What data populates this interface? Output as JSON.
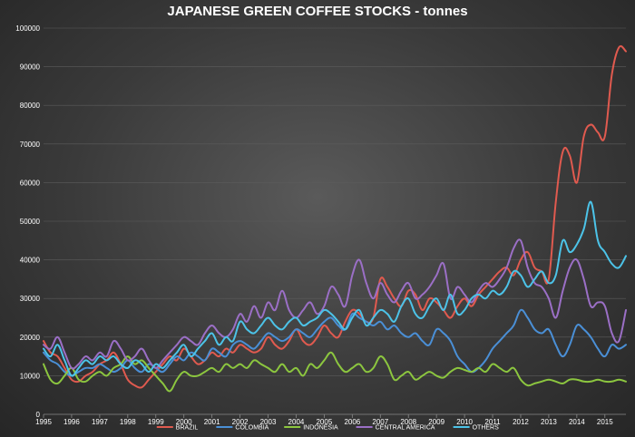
{
  "chart_data": {
    "type": "line",
    "title": "JAPANESE GREEN COFFEE STOCKS - tonnes",
    "xlabel": "",
    "ylabel": "",
    "xlim": [
      1995,
      2015.75
    ],
    "ylim": [
      0,
      100000
    ],
    "x_ticks": [
      "1995",
      "1996",
      "1997",
      "1998",
      "1999",
      "2000",
      "2001",
      "2002",
      "2003",
      "2004",
      "2005",
      "2006",
      "2007",
      "2008",
      "2009",
      "2010",
      "2011",
      "2012",
      "2013",
      "2014",
      "2015"
    ],
    "y_ticks": [
      "0",
      "10000",
      "20000",
      "30000",
      "40000",
      "50000",
      "60000",
      "70000",
      "80000",
      "90000",
      "100000"
    ],
    "grid": "horizontal",
    "legend_position": "bottom",
    "series": [
      {
        "name": "BRAZIL",
        "color": "#e05a4f",
        "x": [
          1995.0,
          1995.25,
          1995.5,
          1995.75,
          1996.0,
          1996.25,
          1996.5,
          1996.75,
          1997.0,
          1997.25,
          1997.5,
          1997.75,
          1998.0,
          1998.25,
          1998.5,
          1998.75,
          1999.0,
          1999.25,
          1999.5,
          1999.75,
          2000.0,
          2000.25,
          2000.5,
          2000.75,
          2001.0,
          2001.25,
          2001.5,
          2001.75,
          2002.0,
          2002.25,
          2002.5,
          2002.75,
          2003.0,
          2003.25,
          2003.5,
          2003.75,
          2004.0,
          2004.25,
          2004.5,
          2004.75,
          2005.0,
          2005.25,
          2005.5,
          2005.75,
          2006.0,
          2006.25,
          2006.5,
          2006.75,
          2007.0,
          2007.25,
          2007.5,
          2007.75,
          2008.0,
          2008.25,
          2008.5,
          2008.75,
          2009.0,
          2009.25,
          2009.5,
          2009.75,
          2010.0,
          2010.25,
          2010.5,
          2010.75,
          2011.0,
          2011.25,
          2011.5,
          2011.75,
          2012.0,
          2012.25,
          2012.5,
          2012.75,
          2013.0,
          2013.25,
          2013.5,
          2013.75,
          2014.0,
          2014.25,
          2014.5,
          2014.75,
          2015.0,
          2015.25,
          2015.5,
          2015.75
        ],
        "y": [
          19000,
          16000,
          15000,
          12000,
          9000,
          8500,
          10000,
          11000,
          13000,
          14000,
          16000,
          13000,
          9000,
          7500,
          7000,
          9000,
          11000,
          13000,
          15000,
          14000,
          17000,
          15000,
          13000,
          14000,
          16000,
          15000,
          17000,
          16000,
          18000,
          17000,
          16000,
          17000,
          20000,
          18000,
          17000,
          19000,
          22000,
          19000,
          18000,
          20000,
          23000,
          21000,
          20000,
          24000,
          27000,
          26000,
          24000,
          25000,
          35000,
          33000,
          30000,
          28000,
          32000,
          31000,
          27000,
          30000,
          29000,
          27000,
          25000,
          28000,
          30000,
          28000,
          31000,
          33000,
          35000,
          37000,
          38000,
          36000,
          40000,
          42000,
          38000,
          37000,
          35000,
          55000,
          68000,
          67000,
          60000,
          72000,
          75000,
          73000,
          72000,
          88000,
          95000,
          94000
        ]
      },
      {
        "name": "COLOMBIA",
        "color": "#4a8fd6",
        "x": [
          1995.0,
          1995.25,
          1995.5,
          1995.75,
          1996.0,
          1996.25,
          1996.5,
          1996.75,
          1997.0,
          1997.25,
          1997.5,
          1997.75,
          1998.0,
          1998.25,
          1998.5,
          1998.75,
          1999.0,
          1999.25,
          1999.5,
          1999.75,
          2000.0,
          2000.25,
          2000.5,
          2000.75,
          2001.0,
          2001.25,
          2001.5,
          2001.75,
          2002.0,
          2002.25,
          2002.5,
          2002.75,
          2003.0,
          2003.25,
          2003.5,
          2003.75,
          2004.0,
          2004.25,
          2004.5,
          2004.75,
          2005.0,
          2005.25,
          2005.5,
          2005.75,
          2006.0,
          2006.25,
          2006.5,
          2006.75,
          2007.0,
          2007.25,
          2007.5,
          2007.75,
          2008.0,
          2008.25,
          2008.5,
          2008.75,
          2009.0,
          2009.25,
          2009.5,
          2009.75,
          2010.0,
          2010.25,
          2010.5,
          2010.75,
          2011.0,
          2011.25,
          2011.5,
          2011.75,
          2012.0,
          2012.25,
          2012.5,
          2012.75,
          2013.0,
          2013.25,
          2013.5,
          2013.75,
          2014.0,
          2014.25,
          2014.5,
          2014.75,
          2015.0,
          2015.25,
          2015.5,
          2015.75
        ],
        "y": [
          16000,
          14000,
          13000,
          11000,
          10000,
          11000,
          12000,
          12000,
          13000,
          12000,
          11000,
          12000,
          14000,
          12000,
          11000,
          13000,
          12000,
          11000,
          13000,
          15000,
          14000,
          16000,
          15000,
          14000,
          17000,
          16000,
          15000,
          18000,
          19000,
          18000,
          17000,
          19000,
          21000,
          20000,
          19000,
          20000,
          22000,
          21000,
          20000,
          22000,
          24000,
          25000,
          23000,
          22000,
          26000,
          25000,
          24000,
          23000,
          24000,
          22000,
          23000,
          21000,
          20000,
          21000,
          19000,
          18000,
          22000,
          21000,
          19000,
          15000,
          13000,
          11000,
          12000,
          14000,
          17000,
          19000,
          21000,
          23000,
          27000,
          25000,
          22000,
          21000,
          22000,
          18000,
          15000,
          18000,
          23000,
          22000,
          20000,
          17000,
          15000,
          18000,
          17000,
          18000
        ]
      },
      {
        "name": "INDONESIA",
        "color": "#8cc63f",
        "x": [
          1995.0,
          1995.25,
          1995.5,
          1995.75,
          1996.0,
          1996.25,
          1996.5,
          1996.75,
          1997.0,
          1997.25,
          1997.5,
          1997.75,
          1998.0,
          1998.25,
          1998.5,
          1998.75,
          1999.0,
          1999.25,
          1999.5,
          1999.75,
          2000.0,
          2000.25,
          2000.5,
          2000.75,
          2001.0,
          2001.25,
          2001.5,
          2001.75,
          2002.0,
          2002.25,
          2002.5,
          2002.75,
          2003.0,
          2003.25,
          2003.5,
          2003.75,
          2004.0,
          2004.25,
          2004.5,
          2004.75,
          2005.0,
          2005.25,
          2005.5,
          2005.75,
          2006.0,
          2006.25,
          2006.5,
          2006.75,
          2007.0,
          2007.25,
          2007.5,
          2007.75,
          2008.0,
          2008.25,
          2008.5,
          2008.75,
          2009.0,
          2009.25,
          2009.5,
          2009.75,
          2010.0,
          2010.25,
          2010.5,
          2010.75,
          2011.0,
          2011.25,
          2011.5,
          2011.75,
          2012.0,
          2012.25,
          2012.5,
          2012.75,
          2013.0,
          2013.25,
          2013.5,
          2013.75,
          2014.0,
          2014.25,
          2014.5,
          2014.75,
          2015.0,
          2015.25,
          2015.5,
          2015.75
        ],
        "y": [
          13000,
          9000,
          8000,
          10000,
          12000,
          9000,
          8500,
          10000,
          11000,
          10000,
          12000,
          13000,
          15000,
          13000,
          14000,
          12000,
          10000,
          8000,
          6000,
          9000,
          11000,
          10000,
          10000,
          11000,
          12000,
          11000,
          13000,
          12000,
          13000,
          12000,
          14000,
          13000,
          12000,
          11000,
          13000,
          11000,
          12000,
          10000,
          13000,
          12000,
          14000,
          16000,
          13000,
          11000,
          12000,
          13000,
          11000,
          12000,
          15000,
          13000,
          9000,
          10000,
          11000,
          9000,
          10000,
          11000,
          10000,
          9500,
          11000,
          12000,
          11500,
          11000,
          12000,
          11000,
          13000,
          12000,
          11000,
          12000,
          9000,
          7500,
          8000,
          8500,
          9000,
          8500,
          8000,
          9000,
          9000,
          8500,
          8500,
          9000,
          8500,
          8500,
          9000,
          8500
        ]
      },
      {
        "name": "CENTRAL AMERICA",
        "color": "#9b6fc6",
        "x": [
          1995.0,
          1995.25,
          1995.5,
          1995.75,
          1996.0,
          1996.25,
          1996.5,
          1996.75,
          1997.0,
          1997.25,
          1997.5,
          1997.75,
          1998.0,
          1998.25,
          1998.5,
          1998.75,
          1999.0,
          1999.25,
          1999.5,
          1999.75,
          2000.0,
          2000.25,
          2000.5,
          2000.75,
          2001.0,
          2001.25,
          2001.5,
          2001.75,
          2002.0,
          2002.25,
          2002.5,
          2002.75,
          2003.0,
          2003.25,
          2003.5,
          2003.75,
          2004.0,
          2004.25,
          2004.5,
          2004.75,
          2005.0,
          2005.25,
          2005.5,
          2005.75,
          2006.0,
          2006.25,
          2006.5,
          2006.75,
          2007.0,
          2007.25,
          2007.5,
          2007.75,
          2008.0,
          2008.25,
          2008.5,
          2008.75,
          2009.0,
          2009.25,
          2009.5,
          2009.75,
          2010.0,
          2010.25,
          2010.5,
          2010.75,
          2011.0,
          2011.25,
          2011.5,
          2011.75,
          2012.0,
          2012.25,
          2012.5,
          2012.75,
          2013.0,
          2013.25,
          2013.5,
          2013.75,
          2014.0,
          2014.25,
          2014.5,
          2014.75,
          2015.0,
          2015.25,
          2015.5,
          2015.75
        ],
        "y": [
          18000,
          17000,
          20000,
          16000,
          12000,
          13000,
          15000,
          14000,
          16000,
          15000,
          19000,
          17000,
          14000,
          15000,
          17000,
          14000,
          12000,
          14000,
          16000,
          18000,
          20000,
          19000,
          18000,
          21000,
          23000,
          21000,
          20000,
          22000,
          26000,
          24000,
          28000,
          25000,
          29000,
          27000,
          32000,
          27000,
          25000,
          27000,
          29000,
          26000,
          28000,
          33000,
          31000,
          28000,
          36000,
          40000,
          34000,
          30000,
          34000,
          31000,
          29000,
          32000,
          34000,
          30000,
          31000,
          33000,
          36000,
          39000,
          30000,
          33000,
          31000,
          29000,
          32000,
          34000,
          33000,
          35000,
          38000,
          43000,
          45000,
          38000,
          34000,
          33000,
          30000,
          25000,
          32000,
          38000,
          40000,
          35000,
          28000,
          29000,
          28000,
          21000,
          19000,
          27000
        ]
      },
      {
        "name": "OTHERS",
        "color": "#4cc3e8",
        "x": [
          1995.0,
          1995.25,
          1995.5,
          1995.75,
          1996.0,
          1996.25,
          1996.5,
          1996.75,
          1997.0,
          1997.25,
          1997.5,
          1997.75,
          1998.0,
          1998.25,
          1998.5,
          1998.75,
          1999.0,
          1999.25,
          1999.5,
          1999.75,
          2000.0,
          2000.25,
          2000.5,
          2000.75,
          2001.0,
          2001.25,
          2001.5,
          2001.75,
          2002.0,
          2002.25,
          2002.5,
          2002.75,
          2003.0,
          2003.25,
          2003.5,
          2003.75,
          2004.0,
          2004.25,
          2004.5,
          2004.75,
          2005.0,
          2005.25,
          2005.5,
          2005.75,
          2006.0,
          2006.25,
          2006.5,
          2006.75,
          2007.0,
          2007.25,
          2007.5,
          2007.75,
          2008.0,
          2008.25,
          2008.5,
          2008.75,
          2009.0,
          2009.25,
          2009.5,
          2009.75,
          2010.0,
          2010.25,
          2010.5,
          2010.75,
          2011.0,
          2011.25,
          2011.5,
          2011.75,
          2012.0,
          2012.25,
          2012.5,
          2012.75,
          2013.0,
          2013.25,
          2013.5,
          2013.75,
          2014.0,
          2014.25,
          2014.5,
          2014.75,
          2015.0,
          2015.25,
          2015.5,
          2015.75
        ],
        "y": [
          17000,
          15000,
          18000,
          14000,
          10000,
          12000,
          14000,
          13000,
          15000,
          14000,
          15000,
          13000,
          12000,
          14000,
          13000,
          11000,
          13000,
          12000,
          14000,
          16000,
          18000,
          15000,
          17000,
          19000,
          21000,
          18000,
          20000,
          19000,
          24000,
          22000,
          21000,
          23000,
          25000,
          23000,
          22000,
          24000,
          25000,
          23000,
          24000,
          25000,
          27000,
          26000,
          24000,
          22000,
          25000,
          27000,
          23000,
          25000,
          27000,
          26000,
          24000,
          28000,
          30000,
          26000,
          25000,
          28000,
          30000,
          27000,
          31000,
          26000,
          27000,
          30000,
          31000,
          30000,
          32000,
          31000,
          33000,
          37000,
          36000,
          33000,
          35000,
          37000,
          34000,
          36000,
          45000,
          42000,
          44000,
          48000,
          55000,
          45000,
          42000,
          39000,
          38000,
          41000
        ]
      }
    ]
  }
}
